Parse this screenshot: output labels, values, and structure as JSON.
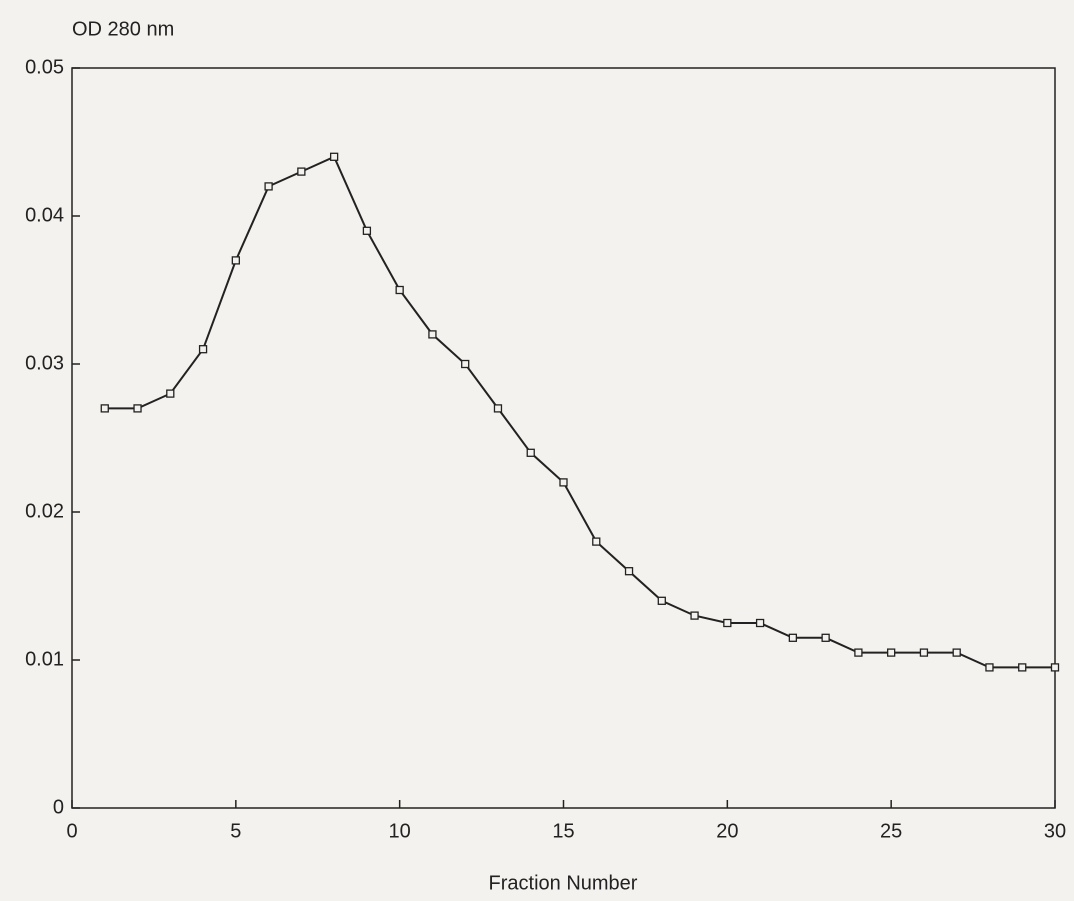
{
  "chart_data": {
    "type": "line",
    "y_label": "OD 280 nm",
    "x_label": "Fraction Number",
    "x": [
      1,
      2,
      3,
      4,
      5,
      6,
      7,
      8,
      9,
      10,
      11,
      12,
      13,
      14,
      15,
      16,
      17,
      18,
      19,
      20,
      21,
      22,
      23,
      24,
      25,
      26,
      27,
      28,
      29,
      30
    ],
    "values": [
      0.027,
      0.027,
      0.028,
      0.031,
      0.037,
      0.042,
      0.043,
      0.044,
      0.039,
      0.035,
      0.032,
      0.03,
      0.027,
      0.024,
      0.022,
      0.018,
      0.016,
      0.014,
      0.013,
      0.0125,
      0.0125,
      0.0115,
      0.0115,
      0.0105,
      0.0105,
      0.0105,
      0.0105,
      0.0095,
      0.0095,
      0.0095
    ],
    "color": "#222222",
    "xlim": [
      0,
      30
    ],
    "xticks": [
      0,
      5,
      10,
      15,
      20,
      25,
      30
    ],
    "ylim": [
      0,
      0.05
    ],
    "yticks": [
      0,
      0.01,
      0.02,
      0.03,
      0.04,
      0.05
    ]
  }
}
